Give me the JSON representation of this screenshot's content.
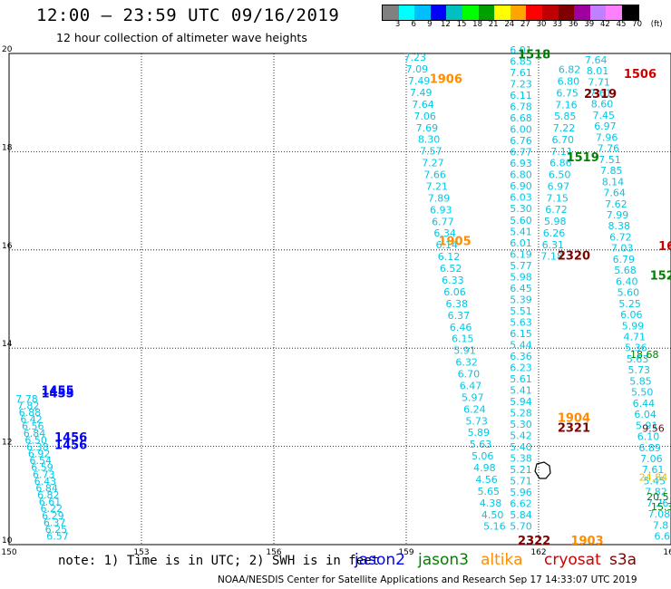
{
  "header": {
    "title": "12:00 – 23:59 UTC 09/16/2019",
    "subtitle": "12 hour collection of altimeter wave heights"
  },
  "legend": {
    "colors": [
      "#808080",
      "#00ffff",
      "#00bfff",
      "#0000ff",
      "#00c0c0",
      "#00ff00",
      "#00a000",
      "#ffff00",
      "#ffa500",
      "#ff0000",
      "#c00000",
      "#800000",
      "#a000a0",
      "#c080ff",
      "#ff80ff",
      "#000000"
    ],
    "labels": [
      "3",
      "6",
      "9",
      "12",
      "15",
      "18",
      "21",
      "24",
      "27",
      "30",
      "33",
      "36",
      "39",
      "42",
      "45",
      "70",
      "(ft)"
    ]
  },
  "axes": {
    "lon_ticks": [
      "150",
      "153",
      "156",
      "159",
      "162",
      "165"
    ],
    "lat_ticks": [
      "20",
      "18",
      "16",
      "14",
      "12",
      "10"
    ]
  },
  "colors": {
    "swh": "#00c8e6",
    "jason2": "#0000ff",
    "jason3": "#008000",
    "altika": "#ff8c00",
    "cryosat": "#cc0000",
    "s3a": "#800000"
  },
  "track_labels": [
    {
      "text": "1518",
      "color": "jason3",
      "lon": 161.9,
      "lat": 19.9
    },
    {
      "text": "1506",
      "color": "cryosat",
      "lon": 164.3,
      "lat": 19.5
    },
    {
      "text": "1906",
      "color": "altika",
      "lon": 159.9,
      "lat": 19.4
    },
    {
      "text": "2319",
      "color": "s3a",
      "lon": 163.4,
      "lat": 19.1
    },
    {
      "text": "1519",
      "color": "jason3",
      "lon": 163.0,
      "lat": 17.8
    },
    {
      "text": "1905",
      "color": "altika",
      "lon": 160.1,
      "lat": 16.1
    },
    {
      "text": "2320",
      "color": "s3a",
      "lon": 162.8,
      "lat": 15.8
    },
    {
      "text": "16",
      "color": "cryosat",
      "lon": 164.9,
      "lat": 16.0
    },
    {
      "text": "152",
      "color": "jason3",
      "lon": 164.8,
      "lat": 15.4
    },
    {
      "text": "1455",
      "color": "jason2",
      "lon": 151.1,
      "lat": 13.0
    },
    {
      "text": "1455",
      "color": "jason2",
      "lon": 151.1,
      "lat": 13.05
    },
    {
      "text": "1456",
      "color": "jason2",
      "lon": 151.4,
      "lat": 12.1
    },
    {
      "text": "1456",
      "color": "jason2",
      "lon": 151.4,
      "lat": 11.95
    },
    {
      "text": "1904",
      "color": "altika",
      "lon": 162.8,
      "lat": 12.5
    },
    {
      "text": "2321",
      "color": "s3a",
      "lon": 162.8,
      "lat": 12.3
    },
    {
      "text": "2322",
      "color": "s3a",
      "lon": 161.9,
      "lat": 10.0
    },
    {
      "text": "1903",
      "color": "altika",
      "lon": 163.1,
      "lat": 10.0
    }
  ],
  "colored_values": [
    {
      "text": "18.68",
      "color": "jason3",
      "lon": 164.4,
      "lat": 13.8
    },
    {
      "text": "9.56",
      "color": "s3a",
      "lon": 164.6,
      "lat": 12.3
    },
    {
      "text": "24.84",
      "color": "#e0c000",
      "lon": 164.6,
      "lat": 11.3
    },
    {
      "text": "20.5",
      "color": "jason3",
      "lon": 164.7,
      "lat": 10.9
    },
    {
      "text": "15.3",
      "color": "jason3",
      "lon": 164.8,
      "lat": 10.7
    }
  ],
  "tracks": [
    {
      "name": "altika-1906",
      "start": [
        159.2,
        19.85
      ],
      "end": [
        161.0,
        10.3
      ],
      "values": [
        "7.23",
        "7.09",
        "7.49",
        "7.49",
        "7.64",
        "7.06",
        "7.69",
        "8.30",
        "7.57",
        "7.27",
        "7.66",
        "7.21",
        "7.89",
        "6.93",
        "6.77",
        "6.34",
        "6.14",
        "6.12",
        "6.52",
        "6.33",
        "6.06",
        "6.38",
        "6.37",
        "6.46",
        "6.15",
        "5.91",
        "6.32",
        "6.70",
        "6.47",
        "5.97",
        "6.24",
        "5.73",
        "5.89",
        "5.63",
        "5.06",
        "4.98",
        "4.56",
        "5.65",
        "4.38",
        "4.50",
        "5.16"
      ]
    },
    {
      "name": "track-161",
      "start": [
        161.6,
        20.0
      ],
      "end": [
        161.6,
        10.3
      ],
      "values": [
        "6.01",
        "6.85",
        "7.61",
        "7.23",
        "6.11",
        "6.78",
        "6.68",
        "6.00",
        "6.76",
        "6.77",
        "6.93",
        "6.80",
        "6.90",
        "6.03",
        "5.30",
        "5.60",
        "5.41",
        "6.01",
        "6.19",
        "5.77",
        "5.98",
        "6.45",
        "5.39",
        "5.51",
        "5.63",
        "6.15",
        "5.44",
        "6.36",
        "6.23",
        "5.61",
        "5.41",
        "5.94",
        "5.28",
        "5.30",
        "5.42",
        "5.40",
        "5.38",
        "5.21",
        "5.71",
        "5.96",
        "6.62",
        "5.84",
        "5.70"
      ]
    },
    {
      "name": "track-163",
      "start": [
        162.7,
        19.6
      ],
      "end": [
        162.3,
        15.8
      ],
      "values": [
        "6.82",
        "6.80",
        "6.75",
        "7.16",
        "5.85",
        "7.22",
        "6.70",
        "7.11",
        "6.86",
        "6.50",
        "6.97",
        "7.15",
        "6.72",
        "5.98",
        "6.26",
        "6.31",
        "7.18"
      ]
    },
    {
      "name": "track-164",
      "start": [
        163.3,
        19.8
      ],
      "end": [
        164.8,
        10.1
      ],
      "values": [
        "7.64",
        "8.01",
        "7.71",
        "7.61",
        "8.60",
        "7.45",
        "6.97",
        "7.96",
        "7.76",
        "7.51",
        "7.85",
        "8.14",
        "7.64",
        "7.62",
        "7.99",
        "8.38",
        "6.72",
        "7.03",
        "6.79",
        "5.68",
        "6.40",
        "5.60",
        "5.25",
        "6.06",
        "5.99",
        "4.71",
        "5.36",
        "5.63",
        "5.73",
        "5.85",
        "5.50",
        "6.44",
        "6.04",
        "5.91",
        "6.10",
        "6.89",
        "7.06",
        "7.61",
        "5.45",
        "7.82",
        "7.26",
        "7.08",
        "7.8",
        "6.6"
      ]
    },
    {
      "name": "jason2-1455",
      "start": [
        150.4,
        12.9
      ],
      "end": [
        151.1,
        10.1
      ],
      "values": [
        "7.78",
        "7.82",
        "6.88",
        "6.42",
        "6.56",
        "6.84",
        "6.50",
        "6.38",
        "6.92",
        "6.54",
        "6.59",
        "6.73",
        "6.43",
        "6.84",
        "6.82",
        "6.61",
        "6.22",
        "6.29",
        "6.37",
        "6.25",
        "6.57"
      ]
    }
  ],
  "footer": {
    "note": "note: 1) Time is in UTC; 2) SWH is in feet",
    "jason2": "jason2",
    "jason3": "jason3",
    "altika": "altika",
    "cryosat": "cryosat",
    "s3a": "s3a",
    "credits": "NOAA/NESDIS Center for Satellite Applications and Research   Sep 17 14:33:07 UTC 2019"
  }
}
